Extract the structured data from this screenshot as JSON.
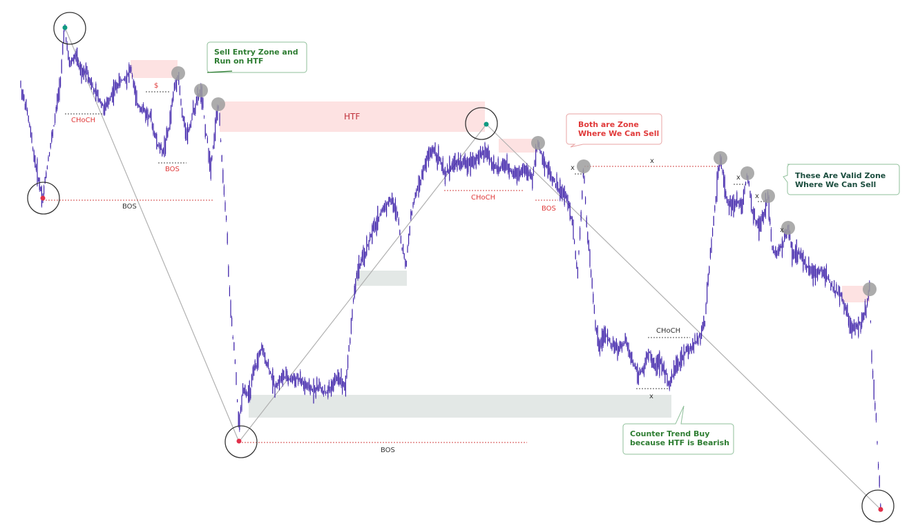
{
  "chart_data": {
    "type": "candlestick",
    "title": "",
    "xlabel": "",
    "ylabel": "",
    "grid": false,
    "colors": {
      "candle": "#3b1fa8",
      "supply_zone": "#fde2e2",
      "demand_zone": "#e3e8e6",
      "bullish_label": "#e03a3a",
      "neutral_label": "#333333",
      "swing_point": "#9a9a9a",
      "swing_high_dot": "#0f9a82",
      "swing_low_dot": "#e0304a",
      "callout_green": "#2e7d32",
      "callout_red": "#e03a3a",
      "callout_dark": "#1b4d3e"
    },
    "price_path_shape": [
      [
        0,
        55
      ],
      [
        25,
        60
      ],
      [
        35,
        48
      ],
      [
        55,
        30
      ],
      [
        60,
        0
      ],
      [
        66,
        8
      ],
      [
        80,
        18
      ],
      [
        95,
        30
      ],
      [
        105,
        22
      ],
      [
        120,
        40
      ],
      [
        130,
        48
      ],
      [
        140,
        62
      ],
      [
        145,
        70
      ],
      [
        152,
        55
      ],
      [
        160,
        42
      ],
      [
        175,
        28
      ],
      [
        185,
        42
      ],
      [
        200,
        60
      ],
      [
        215,
        46
      ],
      [
        228,
        60
      ],
      [
        238,
        30
      ],
      [
        247,
        10
      ],
      [
        258,
        24
      ],
      [
        268,
        8
      ],
      [
        280,
        -10
      ],
      [
        287,
        210
      ],
      [
        295,
        300
      ],
      [
        300,
        350
      ],
      [
        312,
        250
      ],
      [
        322,
        280
      ],
      [
        335,
        260
      ],
      [
        345,
        270
      ],
      [
        360,
        260
      ],
      [
        372,
        220
      ],
      [
        378,
        140
      ],
      [
        392,
        120
      ],
      [
        400,
        105
      ],
      [
        410,
        90
      ],
      [
        420,
        115
      ],
      [
        430,
        75
      ],
      [
        438,
        52
      ],
      [
        448,
        42
      ],
      [
        460,
        40
      ],
      [
        472,
        38
      ],
      [
        482,
        42
      ],
      [
        492,
        50
      ],
      [
        500,
        36
      ],
      [
        510,
        55
      ],
      [
        522,
        48
      ],
      [
        535,
        58
      ],
      [
        545,
        72
      ],
      [
        555,
        40
      ],
      [
        562,
        45
      ],
      [
        575,
        100
      ],
      [
        585,
        110
      ],
      [
        590,
        128
      ],
      [
        600,
        140
      ],
      [
        610,
        168
      ],
      [
        622,
        190
      ],
      [
        630,
        185
      ],
      [
        642,
        160
      ],
      [
        650,
        135
      ],
      [
        660,
        155
      ],
      [
        672,
        166
      ],
      [
        680,
        165
      ],
      [
        688,
        140
      ],
      [
        692,
        120
      ],
      [
        700,
        117
      ],
      [
        710,
        130
      ],
      [
        718,
        120
      ],
      [
        725,
        100
      ],
      [
        735,
        76
      ],
      [
        745,
        68
      ],
      [
        752,
        74
      ],
      [
        762,
        56
      ],
      [
        775,
        78
      ],
      [
        790,
        70
      ],
      [
        800,
        90
      ],
      [
        815,
        100
      ],
      [
        830,
        120
      ],
      [
        840,
        120
      ],
      [
        855,
        92
      ]
    ],
    "series": [
      {
        "y_range": [
          0,
          1
        ]
      }
    ],
    "annotations": {
      "labels": [
        "CHoCH",
        "$",
        "BOS",
        "BOS",
        "HTF",
        "CHoCH",
        "BOS",
        "BOS",
        "CHoCH",
        "x",
        "x",
        "x",
        "x",
        "x",
        "x"
      ],
      "callouts": [
        "Sell Entry Zone and Run on HTF",
        "Both are Zone Where We Can Sell",
        "These Are Valid Zone Where We Can Sell",
        "Counter Trend Buy because HTF is Bearish"
      ]
    }
  },
  "callouts": {
    "sell_entry_line1": "Sell Entry Zone and",
    "sell_entry_line2": "Run on HTF",
    "both_zone_line1": "Both are Zone",
    "both_zone_line2": "Where We Can Sell",
    "valid_zone_line1": "These Are Valid Zone",
    "valid_zone_line2": "Where We Can Sell",
    "counter_line1": "Counter Trend Buy",
    "counter_line2": "because HTF is Bearish"
  },
  "labels": {
    "choch_1": "CHoCH",
    "dollar": "$",
    "bos_1": "BOS",
    "bos_2": "BOS",
    "htf": "HTF",
    "choch_2": "CHoCH",
    "bos_3": "BOS",
    "bos_4": "BOS",
    "choch_3": "CHoCH",
    "x": "x"
  }
}
